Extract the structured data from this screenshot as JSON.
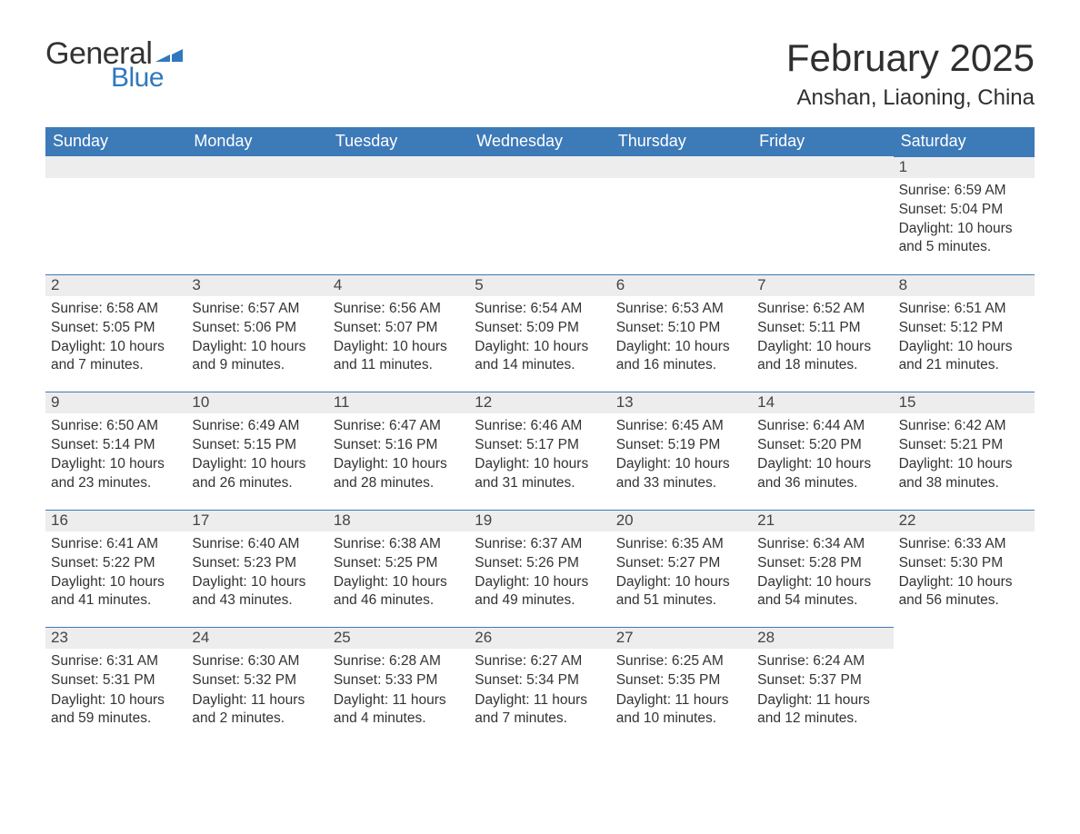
{
  "logo": {
    "text_general": "General",
    "text_blue": "Blue"
  },
  "title": "February 2025",
  "location": "Anshan, Liaoning, China",
  "colors": {
    "header_bg": "#3d7ab8",
    "header_text": "#ffffff",
    "daynum_bg": "#ededed",
    "daynum_border": "#3d7ab8",
    "logo_blue": "#2f78bf",
    "body_text": "#333333",
    "background": "#ffffff"
  },
  "weekdays": [
    "Sunday",
    "Monday",
    "Tuesday",
    "Wednesday",
    "Thursday",
    "Friday",
    "Saturday"
  ],
  "weeks": [
    [
      {
        "day": "",
        "sunrise": "",
        "sunset": "",
        "daylight": ""
      },
      {
        "day": "",
        "sunrise": "",
        "sunset": "",
        "daylight": ""
      },
      {
        "day": "",
        "sunrise": "",
        "sunset": "",
        "daylight": ""
      },
      {
        "day": "",
        "sunrise": "",
        "sunset": "",
        "daylight": ""
      },
      {
        "day": "",
        "sunrise": "",
        "sunset": "",
        "daylight": ""
      },
      {
        "day": "",
        "sunrise": "",
        "sunset": "",
        "daylight": ""
      },
      {
        "day": "1",
        "sunrise": "Sunrise: 6:59 AM",
        "sunset": "Sunset: 5:04 PM",
        "daylight": "Daylight: 10 hours and 5 minutes."
      }
    ],
    [
      {
        "day": "2",
        "sunrise": "Sunrise: 6:58 AM",
        "sunset": "Sunset: 5:05 PM",
        "daylight": "Daylight: 10 hours and 7 minutes."
      },
      {
        "day": "3",
        "sunrise": "Sunrise: 6:57 AM",
        "sunset": "Sunset: 5:06 PM",
        "daylight": "Daylight: 10 hours and 9 minutes."
      },
      {
        "day": "4",
        "sunrise": "Sunrise: 6:56 AM",
        "sunset": "Sunset: 5:07 PM",
        "daylight": "Daylight: 10 hours and 11 minutes."
      },
      {
        "day": "5",
        "sunrise": "Sunrise: 6:54 AM",
        "sunset": "Sunset: 5:09 PM",
        "daylight": "Daylight: 10 hours and 14 minutes."
      },
      {
        "day": "6",
        "sunrise": "Sunrise: 6:53 AM",
        "sunset": "Sunset: 5:10 PM",
        "daylight": "Daylight: 10 hours and 16 minutes."
      },
      {
        "day": "7",
        "sunrise": "Sunrise: 6:52 AM",
        "sunset": "Sunset: 5:11 PM",
        "daylight": "Daylight: 10 hours and 18 minutes."
      },
      {
        "day": "8",
        "sunrise": "Sunrise: 6:51 AM",
        "sunset": "Sunset: 5:12 PM",
        "daylight": "Daylight: 10 hours and 21 minutes."
      }
    ],
    [
      {
        "day": "9",
        "sunrise": "Sunrise: 6:50 AM",
        "sunset": "Sunset: 5:14 PM",
        "daylight": "Daylight: 10 hours and 23 minutes."
      },
      {
        "day": "10",
        "sunrise": "Sunrise: 6:49 AM",
        "sunset": "Sunset: 5:15 PM",
        "daylight": "Daylight: 10 hours and 26 minutes."
      },
      {
        "day": "11",
        "sunrise": "Sunrise: 6:47 AM",
        "sunset": "Sunset: 5:16 PM",
        "daylight": "Daylight: 10 hours and 28 minutes."
      },
      {
        "day": "12",
        "sunrise": "Sunrise: 6:46 AM",
        "sunset": "Sunset: 5:17 PM",
        "daylight": "Daylight: 10 hours and 31 minutes."
      },
      {
        "day": "13",
        "sunrise": "Sunrise: 6:45 AM",
        "sunset": "Sunset: 5:19 PM",
        "daylight": "Daylight: 10 hours and 33 minutes."
      },
      {
        "day": "14",
        "sunrise": "Sunrise: 6:44 AM",
        "sunset": "Sunset: 5:20 PM",
        "daylight": "Daylight: 10 hours and 36 minutes."
      },
      {
        "day": "15",
        "sunrise": "Sunrise: 6:42 AM",
        "sunset": "Sunset: 5:21 PM",
        "daylight": "Daylight: 10 hours and 38 minutes."
      }
    ],
    [
      {
        "day": "16",
        "sunrise": "Sunrise: 6:41 AM",
        "sunset": "Sunset: 5:22 PM",
        "daylight": "Daylight: 10 hours and 41 minutes."
      },
      {
        "day": "17",
        "sunrise": "Sunrise: 6:40 AM",
        "sunset": "Sunset: 5:23 PM",
        "daylight": "Daylight: 10 hours and 43 minutes."
      },
      {
        "day": "18",
        "sunrise": "Sunrise: 6:38 AM",
        "sunset": "Sunset: 5:25 PM",
        "daylight": "Daylight: 10 hours and 46 minutes."
      },
      {
        "day": "19",
        "sunrise": "Sunrise: 6:37 AM",
        "sunset": "Sunset: 5:26 PM",
        "daylight": "Daylight: 10 hours and 49 minutes."
      },
      {
        "day": "20",
        "sunrise": "Sunrise: 6:35 AM",
        "sunset": "Sunset: 5:27 PM",
        "daylight": "Daylight: 10 hours and 51 minutes."
      },
      {
        "day": "21",
        "sunrise": "Sunrise: 6:34 AM",
        "sunset": "Sunset: 5:28 PM",
        "daylight": "Daylight: 10 hours and 54 minutes."
      },
      {
        "day": "22",
        "sunrise": "Sunrise: 6:33 AM",
        "sunset": "Sunset: 5:30 PM",
        "daylight": "Daylight: 10 hours and 56 minutes."
      }
    ],
    [
      {
        "day": "23",
        "sunrise": "Sunrise: 6:31 AM",
        "sunset": "Sunset: 5:31 PM",
        "daylight": "Daylight: 10 hours and 59 minutes."
      },
      {
        "day": "24",
        "sunrise": "Sunrise: 6:30 AM",
        "sunset": "Sunset: 5:32 PM",
        "daylight": "Daylight: 11 hours and 2 minutes."
      },
      {
        "day": "25",
        "sunrise": "Sunrise: 6:28 AM",
        "sunset": "Sunset: 5:33 PM",
        "daylight": "Daylight: 11 hours and 4 minutes."
      },
      {
        "day": "26",
        "sunrise": "Sunrise: 6:27 AM",
        "sunset": "Sunset: 5:34 PM",
        "daylight": "Daylight: 11 hours and 7 minutes."
      },
      {
        "day": "27",
        "sunrise": "Sunrise: 6:25 AM",
        "sunset": "Sunset: 5:35 PM",
        "daylight": "Daylight: 11 hours and 10 minutes."
      },
      {
        "day": "28",
        "sunrise": "Sunrise: 6:24 AM",
        "sunset": "Sunset: 5:37 PM",
        "daylight": "Daylight: 11 hours and 12 minutes."
      },
      {
        "day": "",
        "sunrise": "",
        "sunset": "",
        "daylight": ""
      }
    ]
  ]
}
